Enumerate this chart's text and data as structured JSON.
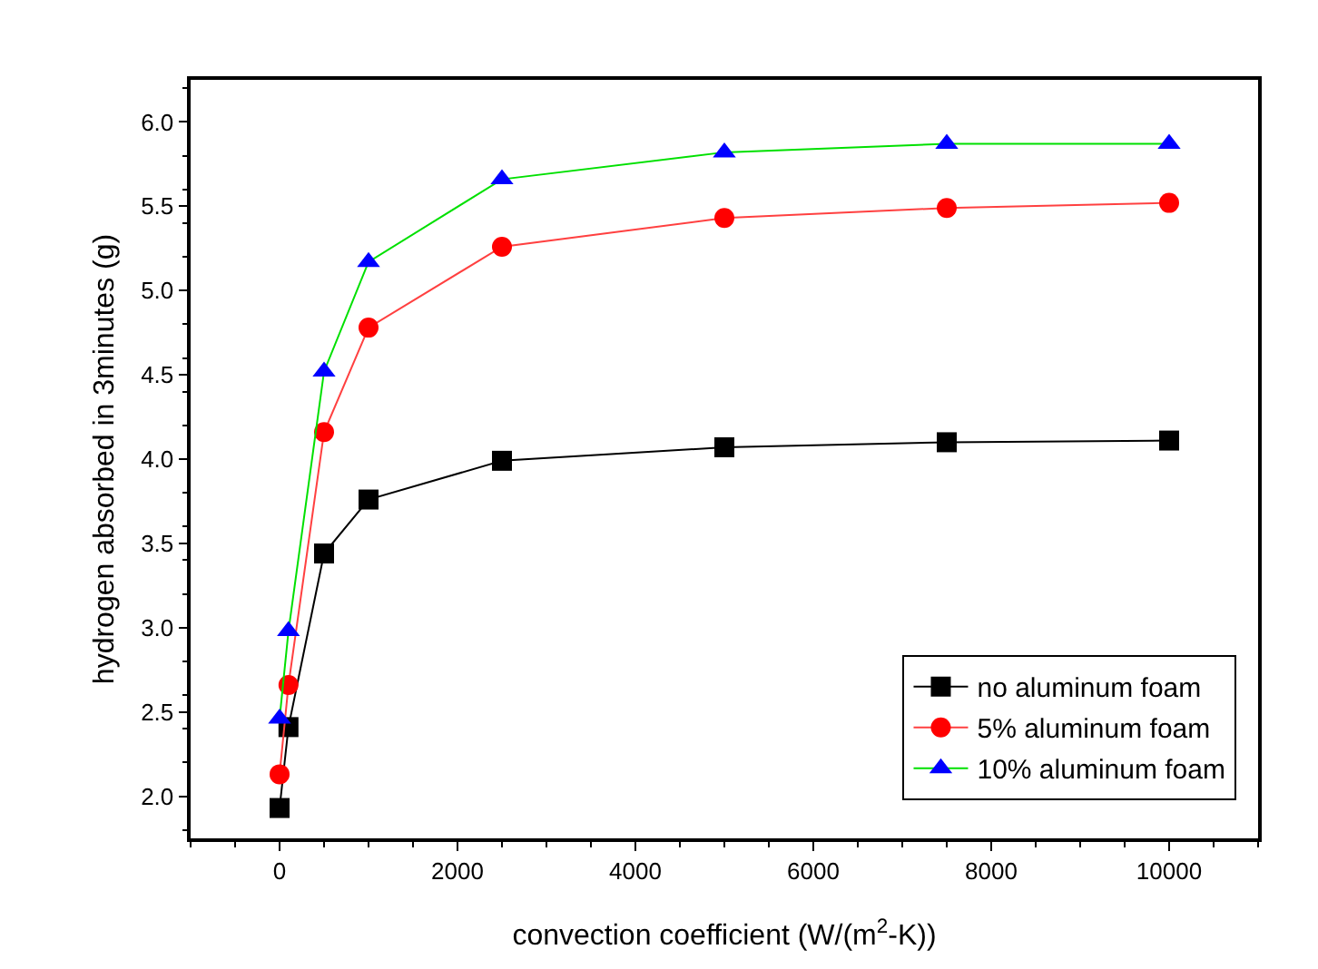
{
  "chart_data": {
    "type": "line",
    "xlabel": "convection coefficient (W/(m$^{2}$-K))",
    "ylabel": "hydrogen absorbed in 3minutes (g)",
    "x": [
      0,
      100,
      500,
      1000,
      2500,
      5000,
      7500,
      10000
    ],
    "series": [
      {
        "name": "no aluminum foam",
        "color": "#000000",
        "marker": "square",
        "values": [
          1.93,
          2.41,
          3.44,
          3.76,
          3.99,
          4.07,
          4.1,
          4.11
        ]
      },
      {
        "name": "5% aluminum foam",
        "color": "#ff0000",
        "marker": "circle",
        "values": [
          2.13,
          2.66,
          4.16,
          4.78,
          5.26,
          5.43,
          5.49,
          5.52
        ]
      },
      {
        "name": "10% aluminum foam",
        "color": "#0000ff",
        "marker": "triangle",
        "values": [
          2.46,
          2.98,
          4.52,
          5.17,
          5.66,
          5.82,
          5.87,
          5.87
        ]
      }
    ],
    "xlim": [
      -1000,
      11000
    ],
    "xticks": [
      0,
      2000,
      4000,
      6000,
      8000,
      10000
    ],
    "ylim": [
      1.75,
      6.25
    ],
    "yticks": [
      {
        "value": 2,
        "label": "2.0"
      },
      2.5,
      {
        "value": 3,
        "label": "3.0"
      },
      3.5,
      {
        "value": 4,
        "label": "4.0"
      },
      4.5,
      {
        "value": 5,
        "label": "5.0"
      },
      5.5,
      {
        "value": 6,
        "label": "6.0"
      }
    ],
    "grid": false,
    "legend": "bottom right",
    "line_style": "solid"
  }
}
